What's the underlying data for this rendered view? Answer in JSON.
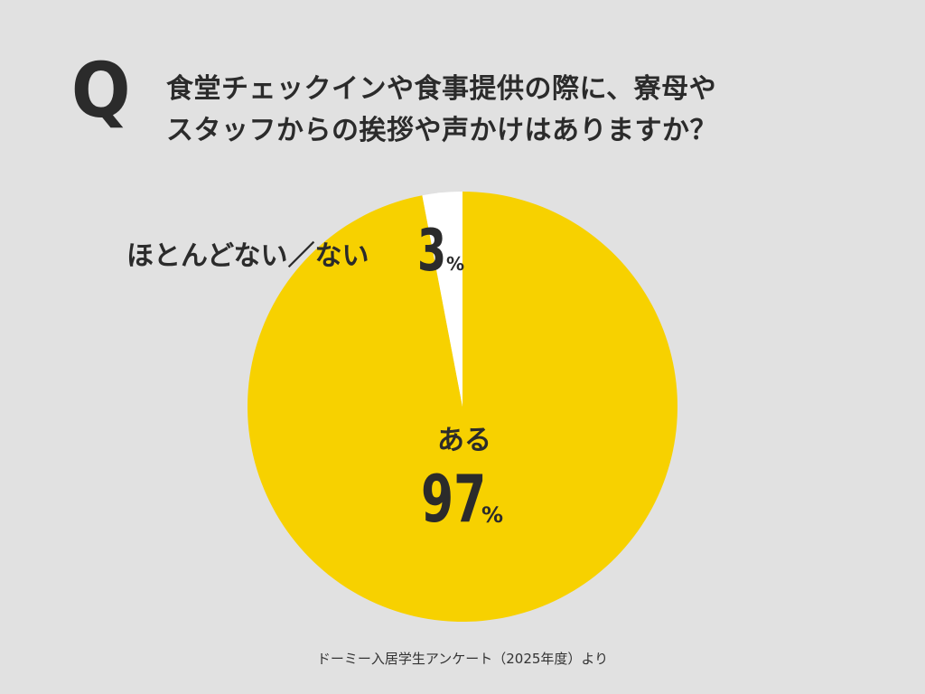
{
  "question": {
    "mark": "Q",
    "line1": "食堂チェックインや食事提供の際に、寮母や",
    "line2": "スタッフからの挨拶や声かけはありますか？"
  },
  "chart_data": {
    "type": "pie",
    "slices": [
      {
        "label": "ある",
        "value": 97,
        "value_text": "97",
        "unit": "%",
        "color": "#f7d100"
      },
      {
        "label": "ほとんどない／ない",
        "value": 3,
        "value_text": "3",
        "unit": "%",
        "color": "#ffffff"
      }
    ]
  },
  "source": "ドーミー入居学生アンケート（2025年度）より"
}
